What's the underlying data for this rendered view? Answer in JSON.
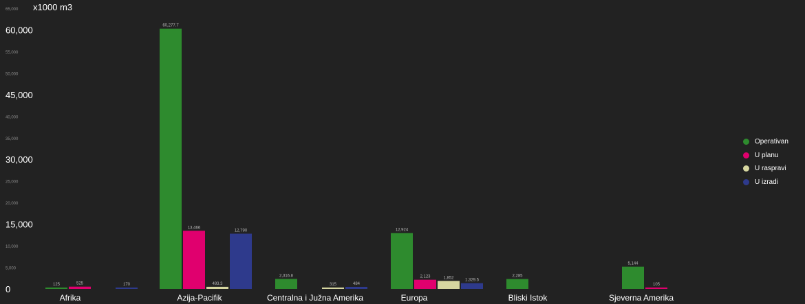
{
  "chart_data": {
    "type": "bar",
    "unit_label": "x1000 m3",
    "categories": [
      "Afrika",
      "Azija-Pacifik",
      "Centralna i Južna Amerika",
      "Europa",
      "Bliski Istok",
      "Sjeverna Amerika"
    ],
    "series": [
      {
        "name": "Operativan",
        "color": "#2e8b2e",
        "values": [
          125,
          60277.7,
          2316.8,
          12924,
          2285,
          5144
        ],
        "labels": [
          "125",
          "60,277.7",
          "2,316.8",
          "12,924",
          "2,285",
          "5,144"
        ]
      },
      {
        "name": "U planu",
        "color": "#e0006e",
        "values": [
          525,
          13466,
          null,
          2123,
          null,
          105
        ],
        "labels": [
          "525",
          "13,466",
          "",
          "2,123",
          "",
          "105"
        ]
      },
      {
        "name": "U raspravi",
        "color": "#d6d6a0",
        "values": [
          null,
          493.3,
          315,
          1852,
          null,
          null
        ],
        "labels": [
          "",
          "493.3",
          "315",
          "1,852",
          "",
          ""
        ]
      },
      {
        "name": "U izradi",
        "color": "#2e3a8c",
        "values": [
          170,
          12790,
          484,
          1329.5,
          null,
          null
        ],
        "labels": [
          "170",
          "12,790",
          "484",
          "1,329.5",
          "",
          ""
        ]
      }
    ],
    "ylim": [
      0,
      65000
    ],
    "y_ticks": [
      {
        "value": 0,
        "label": "0",
        "major": true
      },
      {
        "value": 5000,
        "label": "5,000",
        "major": false
      },
      {
        "value": 10000,
        "label": "10,000",
        "major": false
      },
      {
        "value": 15000,
        "label": "15,000",
        "major": true
      },
      {
        "value": 20000,
        "label": "20,000",
        "major": false
      },
      {
        "value": 25000,
        "label": "25,000",
        "major": false
      },
      {
        "value": 30000,
        "label": "30,000",
        "major": true
      },
      {
        "value": 35000,
        "label": "35,000",
        "major": false
      },
      {
        "value": 40000,
        "label": "40,000",
        "major": false
      },
      {
        "value": 45000,
        "label": "45,000",
        "major": true
      },
      {
        "value": 50000,
        "label": "50,000",
        "major": false
      },
      {
        "value": 55000,
        "label": "55,000",
        "major": false
      },
      {
        "value": 60000,
        "label": "60,000",
        "major": true
      },
      {
        "value": 65000,
        "label": "65,000",
        "major": false
      }
    ],
    "legend_position": "right",
    "grid": false
  }
}
